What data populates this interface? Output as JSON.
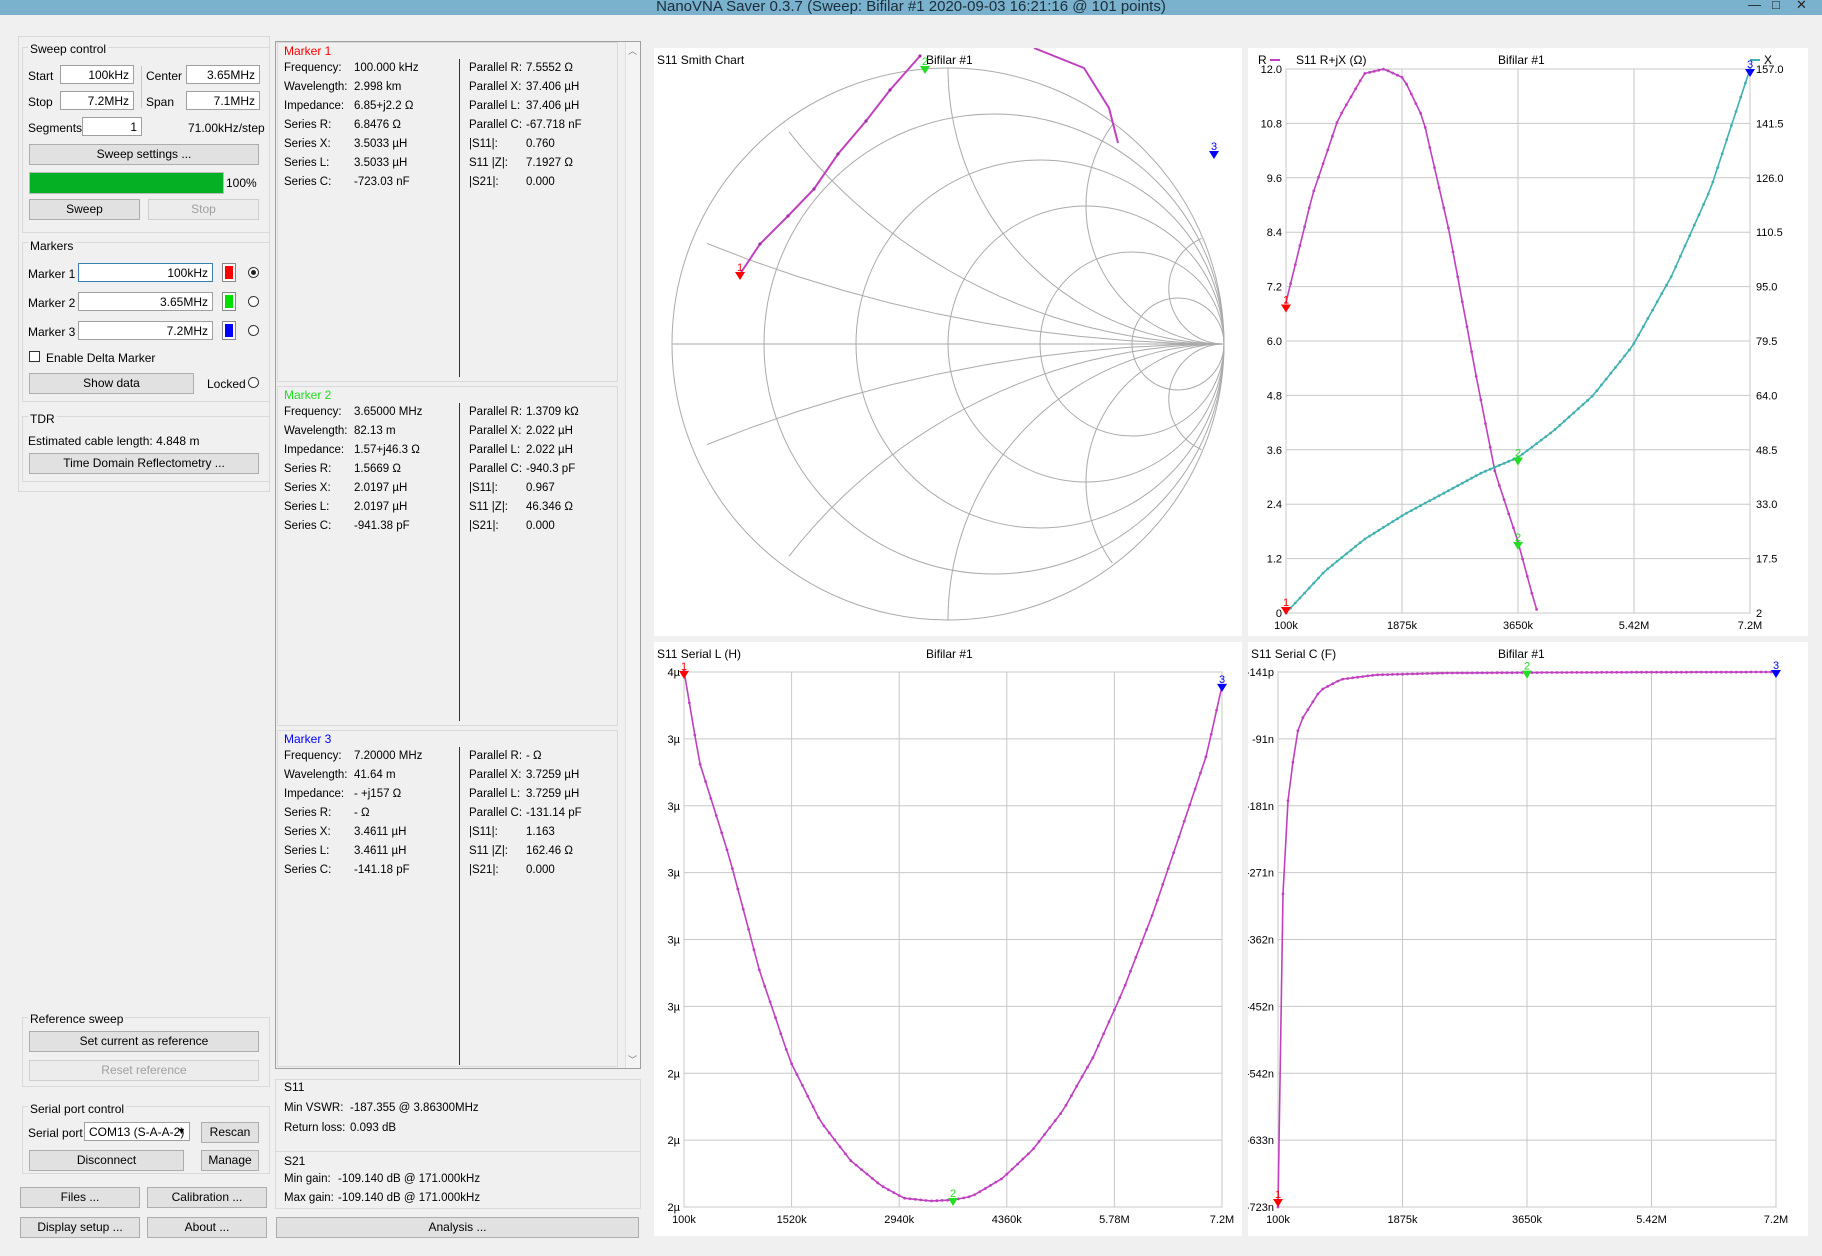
{
  "window": {
    "title": "NanoVNA Saver 0.3.7 (Sweep: Bifilar #1 2020-09-03 16:21:16 @ 101 points)",
    "controls": [
      "—",
      "□",
      "✕"
    ]
  },
  "sweep_control": {
    "title": "Sweep control",
    "start_label": "Start",
    "start_value": "100kHz",
    "center_label": "Center",
    "center_value": "3.65MHz",
    "stop_label": "Stop",
    "stop_value": "7.2MHz",
    "span_label": "Span",
    "span_value": "7.1MHz",
    "segments_label": "Segments",
    "segments_value": "1",
    "step_text": "71.00kHz/step",
    "settings_button": "Sweep settings ...",
    "progress": 100,
    "progress_text": "100%",
    "sweep_button": "Sweep",
    "stop_button": "Stop"
  },
  "markers": {
    "title": "Markers",
    "items": [
      {
        "label": "Marker 1",
        "value": "100kHz",
        "color": "#ff0000",
        "selected": true
      },
      {
        "label": "Marker 2",
        "value": "3.65MHz",
        "color": "#00e000",
        "selected": false
      },
      {
        "label": "Marker 3",
        "value": "7.2MHz",
        "color": "#0000ff",
        "selected": false
      }
    ],
    "delta_label": "Enable Delta Marker",
    "show_data_button": "Show data",
    "locked_label": "Locked"
  },
  "tdr": {
    "title": "TDR",
    "cable_text": "Estimated cable length:  4.848 m",
    "button": "Time Domain Reflectometry ..."
  },
  "reference_sweep": {
    "title": "Reference sweep",
    "set_button": "Set current as reference",
    "reset_button": "Reset reference"
  },
  "serial": {
    "title": "Serial port control",
    "port_label": "Serial port",
    "port_value": "COM13 (S-A-A-2)",
    "rescan_button": "Rescan",
    "disconnect_button": "Disconnect",
    "manage_button": "Manage"
  },
  "bottom_buttons": {
    "files": "Files ...",
    "calibration": "Calibration ...",
    "display": "Display setup ...",
    "about": "About ...",
    "analysis": "Analysis ..."
  },
  "marker_data": [
    {
      "title": "Marker 1",
      "color": "#ff0000",
      "left": [
        [
          "Frequency:",
          "100.000 kHz"
        ],
        [
          "Wavelength:",
          "2.998 km"
        ],
        [
          "Impedance:",
          "6.85+j2.2 Ω"
        ],
        [
          "Series R:",
          "6.8476 Ω"
        ],
        [
          "Series X:",
          "3.5033 µH"
        ],
        [
          "Series L:",
          "3.5033 µH"
        ],
        [
          "Series C:",
          "-723.03 nF"
        ]
      ],
      "right": [
        [
          "Parallel R:",
          "7.5552 Ω"
        ],
        [
          "Parallel X:",
          "37.406 µH"
        ],
        [
          "Parallel L:",
          "37.406 µH"
        ],
        [
          "Parallel C:",
          "-67.718 nF"
        ],
        [
          "|S11|:",
          "0.760"
        ],
        [
          "S11 |Z|:",
          "7.1927 Ω"
        ],
        [
          "|S21|:",
          "0.000"
        ]
      ]
    },
    {
      "title": "Marker 2",
      "color": "#22dd22",
      "left": [
        [
          "Frequency:",
          "3.65000 MHz"
        ],
        [
          "Wavelength:",
          "82.13 m"
        ],
        [
          "Impedance:",
          "1.57+j46.3 Ω"
        ],
        [
          "Series R:",
          "1.5669 Ω"
        ],
        [
          "Series X:",
          "2.0197 µH"
        ],
        [
          "Series L:",
          "2.0197 µH"
        ],
        [
          "Series C:",
          "-941.38 pF"
        ]
      ],
      "right": [
        [
          "Parallel R:",
          "1.3709 kΩ"
        ],
        [
          "Parallel X:",
          "2.022 µH"
        ],
        [
          "Parallel L:",
          "2.022 µH"
        ],
        [
          "Parallel C:",
          "-940.3 pF"
        ],
        [
          "|S11|:",
          "0.967"
        ],
        [
          "S11 |Z|:",
          "46.346 Ω"
        ],
        [
          "|S21|:",
          "0.000"
        ]
      ]
    },
    {
      "title": "Marker 3",
      "color": "#0000ff",
      "left": [
        [
          "Frequency:",
          "7.20000 MHz"
        ],
        [
          "Wavelength:",
          "41.64 m"
        ],
        [
          "Impedance:",
          "- +j157 Ω"
        ],
        [
          "Series R:",
          "- Ω"
        ],
        [
          "Series X:",
          "3.4611 µH"
        ],
        [
          "Series L:",
          "3.4611 µH"
        ],
        [
          "Series C:",
          "-141.18 pF"
        ]
      ],
      "right": [
        [
          "Parallel R:",
          "- Ω"
        ],
        [
          "Parallel X:",
          "3.7259 µH"
        ],
        [
          "Parallel L:",
          "3.7259 µH"
        ],
        [
          "Parallel C:",
          "-131.14 pF"
        ],
        [
          "|S11|:",
          "1.163"
        ],
        [
          "S11 |Z|:",
          "162.46 Ω"
        ],
        [
          "|S21|:",
          "0.000"
        ]
      ]
    }
  ],
  "s11_summary": {
    "title": "S11",
    "vswr_label": "Min VSWR:",
    "vswr_value": "-187.355 @ 3.86300MHz",
    "rl_label": "Return loss:",
    "rl_value": "0.093 dB"
  },
  "s21_summary": {
    "title": "S21",
    "min_label": "Min gain:",
    "min_value": "-109.140 dB @ 171.000kHz",
    "max_label": "Max gain:",
    "max_value": "-109.140 dB @ 171.000kHz"
  },
  "charts": {
    "smith": {
      "title": "S11 Smith Chart",
      "subtitle": "Bifilar #1",
      "marker_labels": [
        "1",
        "2",
        "3"
      ]
    },
    "rjx": {
      "title": "S11 R+jX (Ω)",
      "subtitle": "Bifilar #1",
      "left_legend": "R",
      "right_legend": "X",
      "left_ticks": [
        "12.0",
        "10.8",
        "9.6",
        "8.4",
        "7.2",
        "6.0",
        "4.8",
        "3.6",
        "2.4",
        "1.2",
        "0"
      ],
      "right_ticks": [
        "157.0",
        "141.5",
        "126.0",
        "110.5",
        "95.0",
        "79.5",
        "64.0",
        "48.5",
        "33.0",
        "17.5",
        "2"
      ],
      "x_ticks": [
        "100k",
        "1875k",
        "3650k",
        "5.42M",
        "7.2M"
      ],
      "marker_labels": [
        "1",
        "2",
        "3"
      ]
    },
    "serial_l": {
      "title": "S11 Serial L (H)",
      "subtitle": "Bifilar #1",
      "y_ticks": [
        "4µ",
        "3µ",
        "3µ",
        "3µ",
        "3µ",
        "3µ",
        "2µ",
        "2µ",
        "2µ"
      ],
      "x_ticks": [
        "100k",
        "1520k",
        "2940k",
        "4360k",
        "5.78M",
        "7.2M"
      ],
      "marker_labels": [
        "1",
        "2",
        "3"
      ]
    },
    "serial_c": {
      "title": "S11 Serial C (F)",
      "subtitle": "Bifilar #1",
      "y_ticks": [
        "-141p",
        "-91n",
        "-181n",
        "-271n",
        "-362n",
        "-452n",
        "-542n",
        "-633n",
        "-723n"
      ],
      "x_ticks": [
        "100k",
        "1875k",
        "3650k",
        "5.42M",
        "7.2M"
      ],
      "marker_labels": [
        "1",
        "2",
        "3"
      ]
    }
  },
  "chart_data": [
    {
      "type": "line",
      "title": "S11 R+jX (Ω)",
      "subtitle": "Bifilar #1",
      "x_unit": "Hz",
      "xlim": [
        100000,
        7200000
      ],
      "series": [
        {
          "name": "R",
          "axis": "left",
          "color": "#c040c0",
          "x": [
            100000,
            500000,
            900000,
            1300000,
            1600000,
            1900000,
            2200000,
            2600000,
            3000000,
            3300000,
            3650000,
            3850000,
            3950000
          ],
          "y": [
            6.85,
            9.2,
            10.9,
            11.9,
            12.0,
            11.8,
            10.9,
            8.4,
            5.3,
            3.1,
            1.57,
            0.5,
            0.0
          ]
        },
        {
          "name": "X",
          "axis": "right",
          "color": "#40b0b0",
          "x": [
            100000,
            700000,
            1300000,
            1900000,
            2500000,
            3100000,
            3650000,
            4200000,
            4800000,
            5400000,
            6000000,
            6600000,
            7200000
          ],
          "y": [
            2,
            14,
            23,
            30,
            36,
            42,
            46.3,
            54,
            64,
            78,
            98,
            123,
            157
          ]
        }
      ],
      "ylim_left": [
        0,
        12.0
      ],
      "ylim_right": [
        2,
        157.0
      ]
    },
    {
      "type": "line",
      "title": "S11 Serial L (H)",
      "subtitle": "Bifilar #1",
      "xlim": [
        100000,
        7200000
      ],
      "series": [
        {
          "color": "#c040c0",
          "x": [
            100000,
            300000,
            700000,
            1100000,
            1500000,
            1900000,
            2300000,
            2700000,
            3000000,
            3350000,
            3650000,
            3900000,
            4300000,
            4700000,
            5100000,
            5500000,
            5900000,
            6300000,
            6700000,
            7000000,
            7200000
          ],
          "y": [
            3.5033,
            3.25,
            2.98,
            2.66,
            2.41,
            2.24,
            2.13,
            2.06,
            2.025,
            2.017,
            2.0197,
            2.03,
            2.08,
            2.16,
            2.27,
            2.42,
            2.61,
            2.83,
            3.08,
            3.27,
            3.4611
          ]
        }
      ]
    },
    {
      "type": "line",
      "title": "S11 Serial C (F)",
      "subtitle": "Bifilar #1",
      "xlim": [
        100000,
        7200000
      ],
      "series": [
        {
          "color": "#c040c0",
          "x": [
            100000,
            130000,
            171000,
            250000,
            400000,
            700000,
            1000000,
            1500000,
            2500000,
            3650000,
            5000000,
            7200000
          ],
          "y": [
            -723.03,
            -450,
            -300,
            -160,
            -70,
            -25,
            -10,
            -4,
            -1.5,
            -0.94,
            -0.5,
            -0.141
          ]
        }
      ]
    }
  ]
}
